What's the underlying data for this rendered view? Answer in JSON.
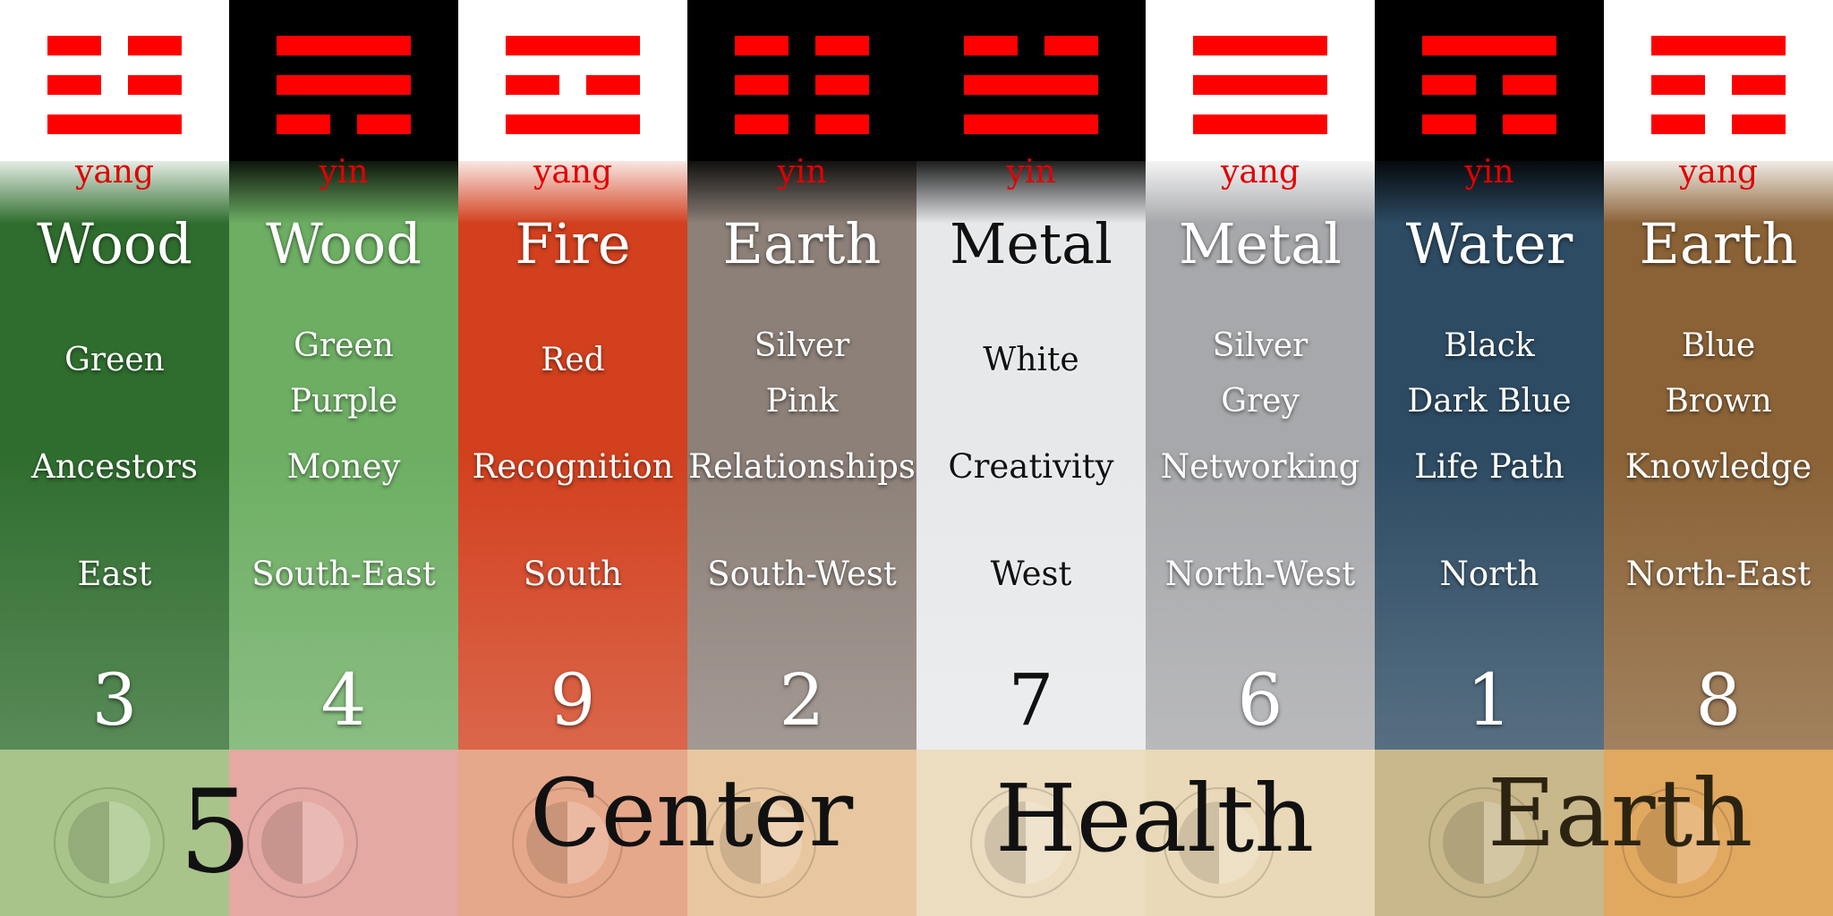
{
  "columns": [
    {
      "polarity": "yang",
      "element": "Wood",
      "colors": [
        "Green"
      ],
      "area": "Ancestors",
      "direction": "East",
      "number": "3",
      "lines": [
        "broken",
        "broken",
        "solid"
      ],
      "cap_color": "#ffffff",
      "bg": "#2f6d2e"
    },
    {
      "polarity": "yin",
      "element": "Wood",
      "colors": [
        "Green",
        "Purple"
      ],
      "area": "Money",
      "direction": "South-East",
      "number": "4",
      "lines": [
        "solid",
        "solid",
        "broken"
      ],
      "cap_color": "#000000",
      "bg": "#6dae63"
    },
    {
      "polarity": "yang",
      "element": "Fire",
      "colors": [
        "Red"
      ],
      "area": "Recognition",
      "direction": "South",
      "number": "9",
      "lines": [
        "solid",
        "broken",
        "solid"
      ],
      "cap_color": "#ffffff",
      "bg": "#d2401e"
    },
    {
      "polarity": "yin",
      "element": "Earth",
      "colors": [
        "Silver",
        "Pink"
      ],
      "area": "Relationships",
      "direction": "South-West",
      "number": "2",
      "lines": [
        "broken",
        "broken",
        "broken"
      ],
      "cap_color": "#000000",
      "bg": "#8c8078"
    },
    {
      "polarity": "yin",
      "element": "Metal",
      "colors": [
        "White"
      ],
      "area": "Creativity",
      "direction": "West",
      "number": "7",
      "lines": [
        "broken",
        "solid",
        "solid"
      ],
      "cap_color": "#000000",
      "bg": "#e6e8ea"
    },
    {
      "polarity": "yang",
      "element": "Metal",
      "colors": [
        "Silver",
        "Grey"
      ],
      "area": "Networking",
      "direction": "North-West",
      "number": "6",
      "lines": [
        "solid",
        "solid",
        "solid"
      ],
      "cap_color": "#ffffff",
      "bg": "#a7a8ab"
    },
    {
      "polarity": "yin",
      "element": "Water",
      "colors": [
        "Black",
        "Dark Blue"
      ],
      "area": "Life Path",
      "direction": "North",
      "number": "1",
      "lines": [
        "solid",
        "broken",
        "broken"
      ],
      "cap_color": "#000000",
      "bg": "#2d4b63"
    },
    {
      "polarity": "yang",
      "element": "Earth",
      "colors": [
        "Blue",
        "Brown"
      ],
      "area": "Knowledge",
      "direction": "North-East",
      "number": "8",
      "lines": [
        "solid",
        "broken",
        "broken"
      ],
      "cap_color": "#ffffff",
      "bg": "#8a6236"
    }
  ],
  "center": {
    "number": "5",
    "word1": "Center",
    "word2": "Health",
    "word3": "Earth"
  },
  "band_tints": [
    "#a8c48a",
    "#e3a9a2",
    "#e6a88a",
    "#e8c7a0",
    "#ecdcc0",
    "#ead9b8",
    "#c8b88c",
    "#e1a860"
  ]
}
